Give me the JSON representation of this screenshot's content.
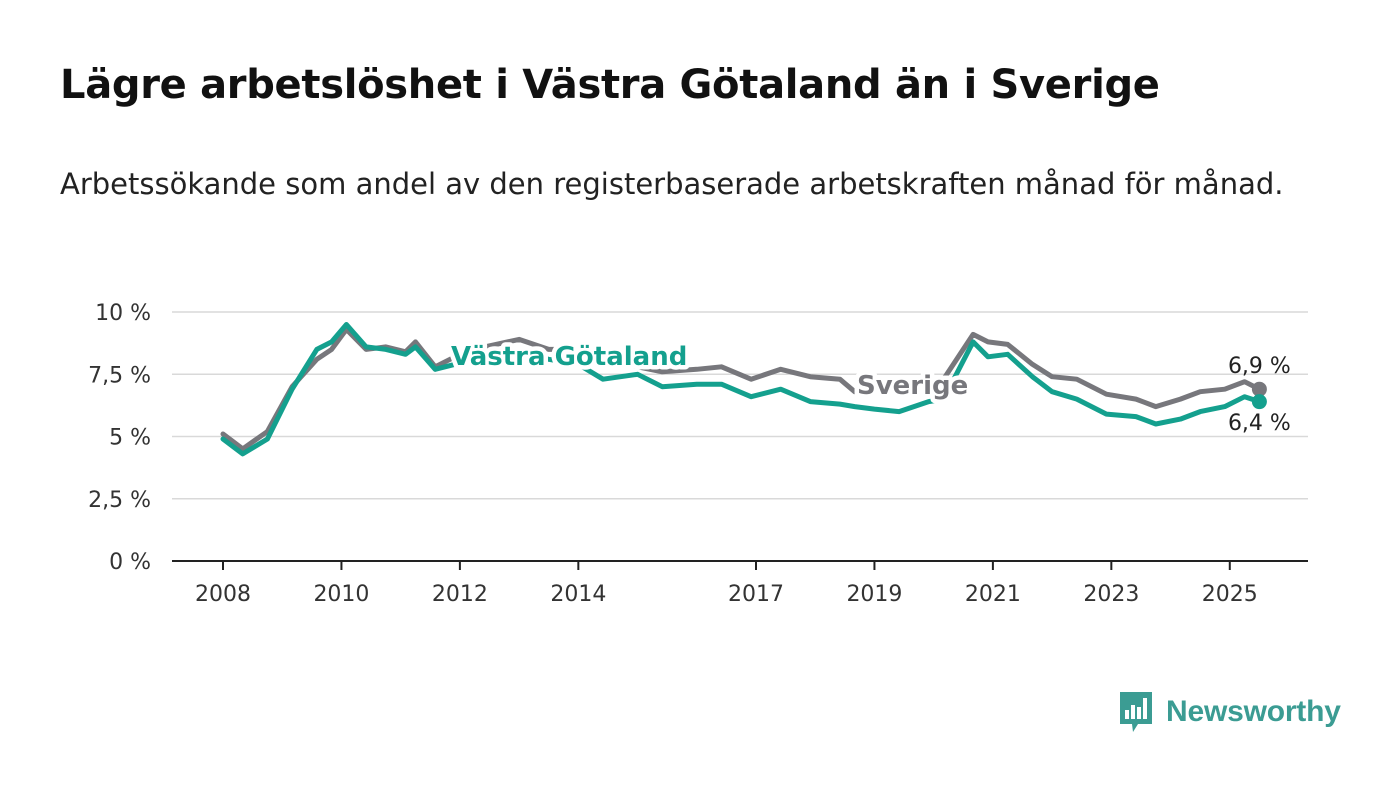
{
  "title": "Lägre arbetslöshet i Västra Götaland än i Sverige",
  "subtitle": "Arbetssökande som andel av den registerbaserade arbetskraften månad för månad.",
  "brand": {
    "name": "Newsworthy",
    "color": "#3b9c93"
  },
  "chart_data": {
    "type": "line",
    "y_ticks": [
      "10 %",
      "7,5 %",
      "5 %",
      "2,5 %",
      "0 %"
    ],
    "y_tick_values": [
      10,
      7.5,
      5,
      2.5,
      0
    ],
    "x_ticks": [
      "2008",
      "2010",
      "2012",
      "2014",
      "2017",
      "2019",
      "2021",
      "2023",
      "2025"
    ],
    "ylim": [
      0,
      10
    ],
    "grid": true,
    "series": [
      {
        "name": "Sverige",
        "color": "#77777c",
        "end_value": 6.9,
        "end_label": "6,9 %",
        "points": [
          [
            "2008-01",
            5.1
          ],
          [
            "2008-05",
            4.5
          ],
          [
            "2008-10",
            5.2
          ],
          [
            "2009-03",
            7.0
          ],
          [
            "2009-08",
            8.1
          ],
          [
            "2009-11",
            8.5
          ],
          [
            "2010-02",
            9.3
          ],
          [
            "2010-06",
            8.5
          ],
          [
            "2010-10",
            8.6
          ],
          [
            "2011-02",
            8.4
          ],
          [
            "2011-04",
            8.8
          ],
          [
            "2011-08",
            7.8
          ],
          [
            "2011-12",
            8.2
          ],
          [
            "2012-06",
            8.6
          ],
          [
            "2013-01",
            8.9
          ],
          [
            "2013-07",
            8.5
          ],
          [
            "2014-01",
            8.5
          ],
          [
            "2014-06",
            8.1
          ],
          [
            "2015-01",
            7.8
          ],
          [
            "2015-06",
            7.6
          ],
          [
            "2016-01",
            7.7
          ],
          [
            "2016-06",
            7.8
          ],
          [
            "2016-12",
            7.3
          ],
          [
            "2017-06",
            7.7
          ],
          [
            "2017-12",
            7.4
          ],
          [
            "2018-06",
            7.3
          ],
          [
            "2018-09",
            6.8
          ],
          [
            "2019-01",
            6.9
          ],
          [
            "2019-06",
            6.9
          ],
          [
            "2019-12",
            7.2
          ],
          [
            "2020-03",
            7.3
          ],
          [
            "2020-09",
            9.1
          ],
          [
            "2020-12",
            8.8
          ],
          [
            "2021-04",
            8.7
          ],
          [
            "2021-09",
            7.9
          ],
          [
            "2022-01",
            7.4
          ],
          [
            "2022-06",
            7.3
          ],
          [
            "2022-12",
            6.7
          ],
          [
            "2023-06",
            6.5
          ],
          [
            "2023-10",
            6.2
          ],
          [
            "2024-03",
            6.5
          ],
          [
            "2024-07",
            6.8
          ],
          [
            "2024-12",
            6.9
          ],
          [
            "2025-04",
            7.2
          ],
          [
            "2025-07",
            6.9
          ]
        ]
      },
      {
        "name": "Västra Götaland",
        "color": "#14a08e",
        "end_value": 6.4,
        "end_label": "6,4 %",
        "points": [
          [
            "2008-01",
            4.9
          ],
          [
            "2008-05",
            4.3
          ],
          [
            "2008-10",
            4.9
          ],
          [
            "2009-03",
            6.9
          ],
          [
            "2009-08",
            8.5
          ],
          [
            "2009-11",
            8.8
          ],
          [
            "2010-02",
            9.5
          ],
          [
            "2010-06",
            8.6
          ],
          [
            "2010-10",
            8.5
          ],
          [
            "2011-02",
            8.3
          ],
          [
            "2011-04",
            8.6
          ],
          [
            "2011-08",
            7.7
          ],
          [
            "2011-12",
            7.9
          ],
          [
            "2012-06",
            8.2
          ],
          [
            "2013-01",
            8.4
          ],
          [
            "2013-07",
            8.1
          ],
          [
            "2014-01",
            7.9
          ],
          [
            "2014-06",
            7.3
          ],
          [
            "2015-01",
            7.5
          ],
          [
            "2015-06",
            7.0
          ],
          [
            "2016-01",
            7.1
          ],
          [
            "2016-06",
            7.1
          ],
          [
            "2016-12",
            6.6
          ],
          [
            "2017-06",
            6.9
          ],
          [
            "2017-12",
            6.4
          ],
          [
            "2018-06",
            6.3
          ],
          [
            "2018-09",
            6.2
          ],
          [
            "2019-01",
            6.1
          ],
          [
            "2019-06",
            6.0
          ],
          [
            "2019-12",
            6.4
          ],
          [
            "2020-03",
            6.5
          ],
          [
            "2020-09",
            8.8
          ],
          [
            "2020-12",
            8.2
          ],
          [
            "2021-04",
            8.3
          ],
          [
            "2021-09",
            7.4
          ],
          [
            "2022-01",
            6.8
          ],
          [
            "2022-06",
            6.5
          ],
          [
            "2022-12",
            5.9
          ],
          [
            "2023-06",
            5.8
          ],
          [
            "2023-10",
            5.5
          ],
          [
            "2024-03",
            5.7
          ],
          [
            "2024-07",
            6.0
          ],
          [
            "2024-12",
            6.2
          ],
          [
            "2025-04",
            6.6
          ],
          [
            "2025-07",
            6.4
          ]
        ]
      }
    ]
  }
}
